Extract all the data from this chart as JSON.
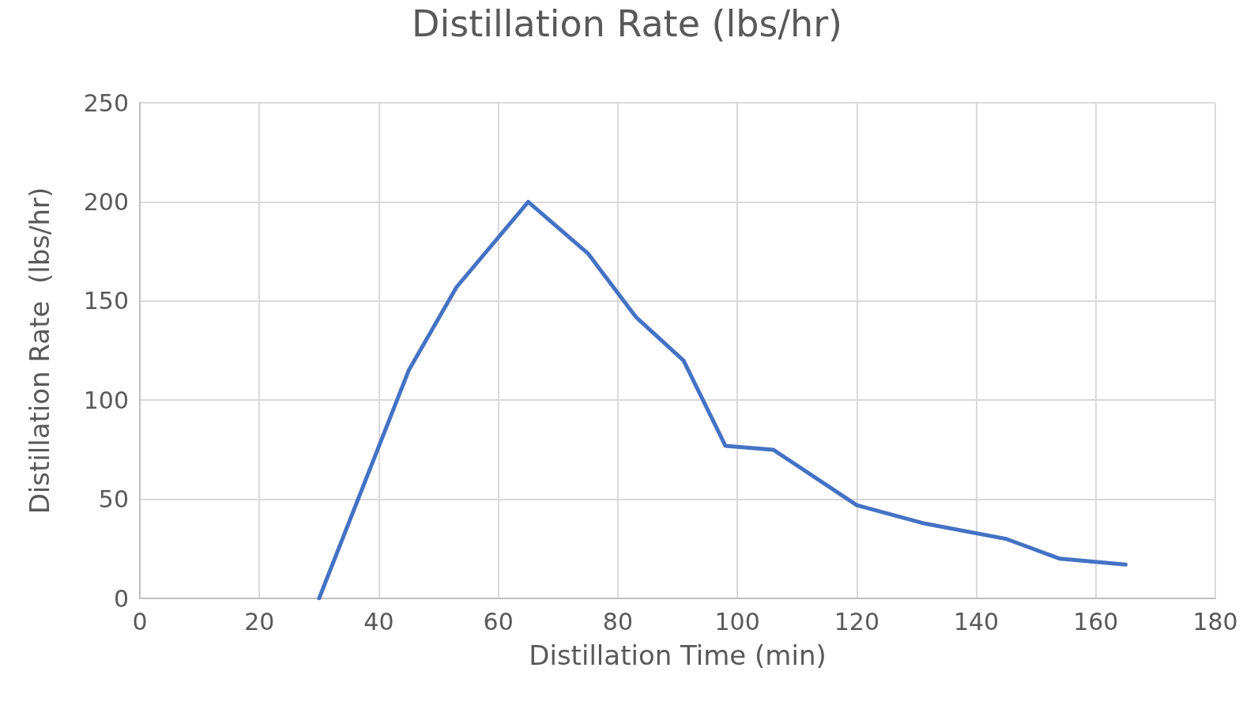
{
  "chart_data": {
    "type": "line",
    "title": "Distillation Rate (lbs/hr)",
    "xlabel": "Distillation Time (min)",
    "ylabel": "Distillation Rate  (lbs/hr)",
    "x": [
      30,
      45,
      53,
      65,
      75,
      83,
      91,
      98,
      106,
      120,
      131,
      145,
      154,
      165
    ],
    "series": [
      {
        "color": "#4472c4",
        "values": [
          0,
          115,
          157,
          200,
          174,
          142,
          120,
          77,
          75,
          47,
          38,
          30,
          20,
          17
        ]
      }
    ],
    "xlim": [
      0,
      180
    ],
    "xticks": [
      0,
      20,
      40,
      60,
      80,
      100,
      120,
      140,
      160,
      180
    ],
    "ylim": [
      0,
      250
    ],
    "yticks": [
      0,
      50,
      100,
      150,
      200,
      250
    ],
    "grid": true,
    "marker": "none",
    "line_style": "solid"
  }
}
